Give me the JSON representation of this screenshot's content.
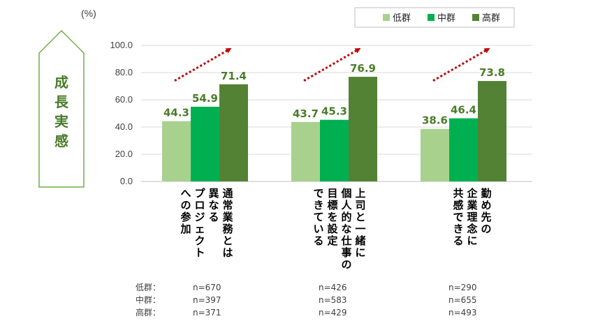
{
  "unit_label": "(%)",
  "side_label": [
    "成",
    "長",
    "実",
    "感"
  ],
  "colors": {
    "low": "#a9d18e",
    "mid": "#00b050",
    "high": "#548235",
    "value_text": "#4a7c2b",
    "arrow": "#c00000"
  },
  "chart_data": {
    "type": "bar",
    "title": "",
    "ylabel": "成長実感",
    "unit": "(%)",
    "ylim": [
      0,
      100
    ],
    "yticks": [
      "0.0",
      "20.0",
      "40.0",
      "60.0",
      "80.0",
      "100.0"
    ],
    "legend_position": "top-right",
    "categories": [
      {
        "id": "c1",
        "lines": [
          "通常業務とは",
          "異なる",
          "プロジェクト",
          "への参加"
        ]
      },
      {
        "id": "c2",
        "lines": [
          "上司と一緒に",
          "個人的な仕事の",
          "目標を設定",
          "できている"
        ]
      },
      {
        "id": "c3",
        "lines": [
          "勤め先の",
          "企業理念に",
          "共感できる"
        ]
      }
    ],
    "series": [
      {
        "name": "低群",
        "key": "low",
        "values": [
          44.3,
          43.7,
          38.6
        ],
        "labels": [
          "44.3",
          "43.7",
          "38.6"
        ]
      },
      {
        "name": "中群",
        "key": "mid",
        "values": [
          54.9,
          45.3,
          46.4
        ],
        "labels": [
          "54.9",
          "45.3",
          "46.4"
        ]
      },
      {
        "name": "高群",
        "key": "high",
        "values": [
          71.4,
          76.9,
          73.8
        ],
        "labels": [
          "71.4",
          "76.9",
          "73.8"
        ]
      }
    ]
  },
  "sample_sizes": {
    "rows": [
      {
        "label": "低群：",
        "values": [
          "n=670",
          "n=426",
          "n=290"
        ]
      },
      {
        "label": "中群：",
        "values": [
          "n=397",
          "n=583",
          "n=655"
        ]
      },
      {
        "label": "高群：",
        "values": [
          "n=371",
          "n=429",
          "n=493"
        ]
      }
    ]
  }
}
